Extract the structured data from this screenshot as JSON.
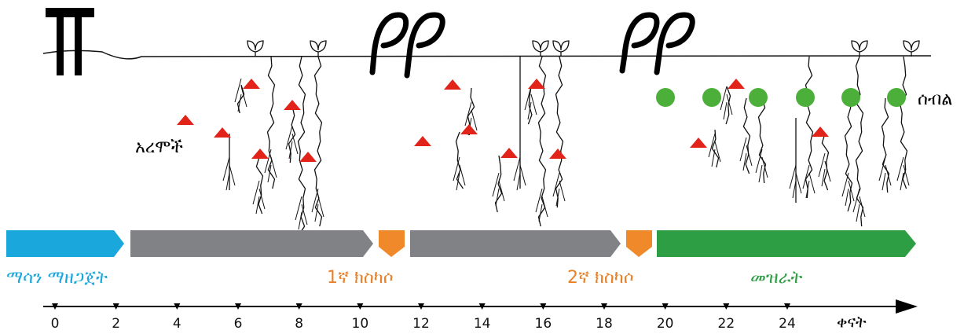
{
  "labels": {
    "weeds": "አረሞች",
    "crop": "ሰብል"
  },
  "phases": [
    {
      "label": "ማሳን ማዘጋጀት"
    },
    {
      "label": "1ኛ ክስካሶ"
    },
    {
      "label": "2ኛ ክስካሶ"
    },
    {
      "label": "መዝራት"
    }
  ],
  "timeline": {
    "ticks": [
      0,
      2,
      4,
      6,
      8,
      10,
      12,
      14,
      16,
      18,
      20,
      22,
      24
    ],
    "label": "ቀናት"
  }
}
